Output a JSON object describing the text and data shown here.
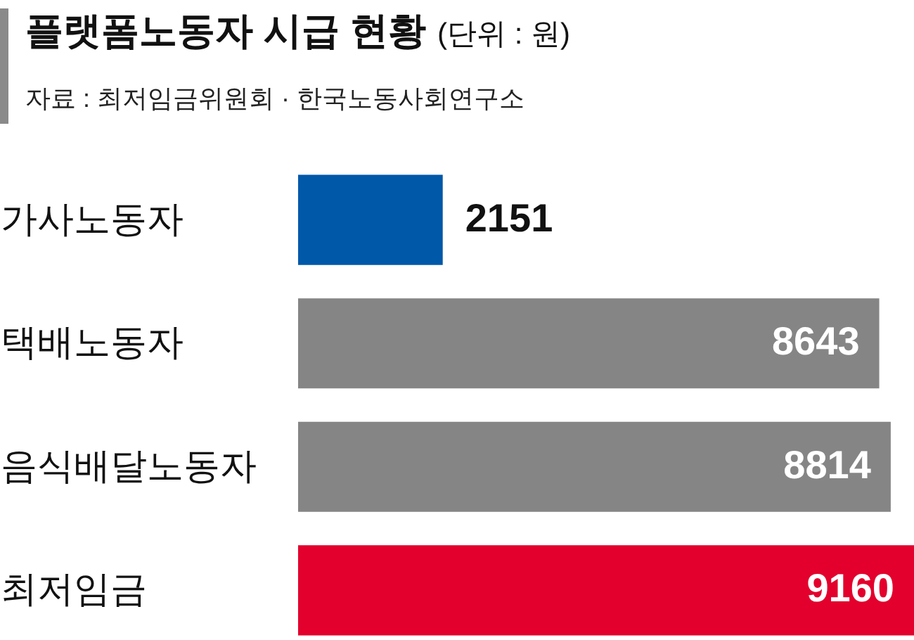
{
  "chart_data": {
    "type": "bar",
    "orientation": "horizontal",
    "title": "플랫폼노동자 시급 현황",
    "annotations": [
      "(단위 : 원)",
      "자료 : 최저임금위원회 · 한국노동사회연구소"
    ],
    "categories": [
      "가사노동자",
      "택배노동자",
      "음식배달노동자",
      "최저임금"
    ],
    "values": [
      2151,
      8643,
      8814,
      9160
    ],
    "colors": [
      "#0058a9",
      "#858585",
      "#858585",
      "#e3002d"
    ],
    "data_labels": true
  }
}
